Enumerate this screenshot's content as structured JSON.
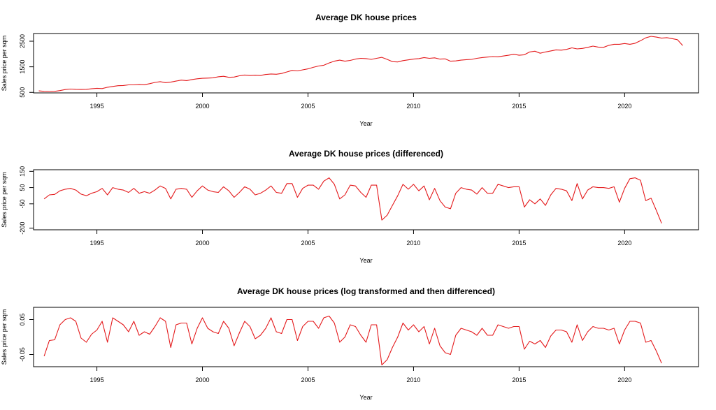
{
  "colors": {
    "series": "#e41a1c"
  },
  "chart_data": [
    {
      "type": "line",
      "title": "Average DK house prices",
      "xlabel": "Year",
      "ylabel": "Sales price per sqm",
      "xlim": [
        1992.0,
        2023.5
      ],
      "ylim": [
        480,
        2800
      ],
      "xticks": [
        1995,
        2000,
        2005,
        2010,
        2015,
        2020
      ],
      "xtick_labels": [
        "1995",
        "2000",
        "2005",
        "2010",
        "2015",
        "2020"
      ],
      "yticks": [
        500,
        1500,
        2500
      ],
      "ytick_labels": [
        "500",
        "1500",
        "2500"
      ],
      "grid": false,
      "legend": "none",
      "series": [
        {
          "x_start": 1992.25,
          "x_step": 0.25,
          "values": [
            560,
            540,
            535,
            540,
            570,
            610,
            630,
            620,
            615,
            620,
            640,
            660,
            650,
            700,
            730,
            760,
            770,
            795,
            795,
            810,
            800,
            840,
            890,
            920,
            880,
            900,
            940,
            980,
            960,
            1000,
            1030,
            1050,
            1060,
            1070,
            1110,
            1130,
            1090,
            1100,
            1150,
            1180,
            1160,
            1170,
            1160,
            1200,
            1220,
            1210,
            1240,
            1300,
            1360,
            1340,
            1380,
            1420,
            1480,
            1530,
            1560,
            1650,
            1720,
            1760,
            1720,
            1750,
            1800,
            1830,
            1820,
            1790,
            1830,
            1870,
            1790,
            1700,
            1690,
            1740,
            1770,
            1800,
            1820,
            1860,
            1830,
            1850,
            1800,
            1810,
            1720,
            1730,
            1760,
            1780,
            1790,
            1830,
            1860,
            1880,
            1900,
            1890,
            1920,
            1950,
            1990,
            1950,
            1970,
            2080,
            2110,
            2030,
            2080,
            2120,
            2160,
            2150,
            2180,
            2240,
            2200,
            2220,
            2260,
            2310,
            2270,
            2260,
            2340,
            2380,
            2380,
            2410,
            2380,
            2420,
            2520,
            2630,
            2690,
            2660,
            2620,
            2640,
            2600,
            2560,
            2330
          ]
        }
      ]
    },
    {
      "type": "line",
      "title": "Average DK house prices (differenced)",
      "xlabel": "Year",
      "ylabel": "Sales price per sqm",
      "xlim": [
        1992.0,
        2023.5
      ],
      "ylim": [
        -210,
        160
      ],
      "xticks": [
        1995,
        2000,
        2005,
        2010,
        2015,
        2020
      ],
      "xtick_labels": [
        "1995",
        "2000",
        "2005",
        "2010",
        "2015",
        "2020"
      ],
      "yticks": [
        -200,
        -50,
        50,
        150
      ],
      "ytick_labels": [
        "-200",
        "-50",
        "50",
        "150"
      ],
      "grid": false,
      "legend": "none",
      "series": [
        {
          "x_start": 1992.5,
          "x_step": 0.25,
          "values": [
            -20,
            5,
            8,
            30,
            40,
            45,
            35,
            10,
            0,
            15,
            25,
            45,
            5,
            50,
            40,
            35,
            20,
            45,
            15,
            25,
            15,
            35,
            60,
            45,
            -20,
            40,
            45,
            40,
            -10,
            30,
            60,
            35,
            25,
            20,
            55,
            30,
            -10,
            20,
            55,
            40,
            5,
            15,
            35,
            60,
            20,
            15,
            75,
            75,
            -10,
            45,
            65,
            65,
            40,
            90,
            110,
            70,
            -20,
            5,
            65,
            60,
            20,
            -10,
            65,
            65,
            -150,
            -120,
            -60,
            0,
            70,
            40,
            70,
            30,
            60,
            -25,
            45,
            -30,
            -70,
            -80,
            15,
            50,
            40,
            35,
            10,
            50,
            15,
            15,
            70,
            60,
            50,
            55,
            55,
            -70,
            -25,
            -50,
            -20,
            -60,
            5,
            45,
            40,
            30,
            -30,
            75,
            -20,
            35,
            55,
            50,
            50,
            45,
            55,
            -40,
            45,
            105,
            110,
            95,
            -30,
            -15,
            -90,
            -170
          ]
        }
      ]
    },
    {
      "type": "line",
      "title": "Average DK house prices (log transformed and then differenced)",
      "xlabel": "Year",
      "ylabel": "Sales price per sqm",
      "xlim": [
        1992.0,
        2023.5
      ],
      "ylim": [
        -0.085,
        0.085
      ],
      "xticks": [
        1995,
        2000,
        2005,
        2010,
        2015,
        2020
      ],
      "xtick_labels": [
        "1995",
        "2000",
        "2005",
        "2010",
        "2015",
        "2020"
      ],
      "yticks": [
        -0.05,
        0.05
      ],
      "ytick_labels": [
        "-0.05",
        "0.05"
      ],
      "grid": false,
      "legend": "none",
      "series": [
        {
          "x_start": 1992.5,
          "x_step": 0.25,
          "values": [
            -0.055,
            -0.01,
            -0.008,
            0.035,
            0.05,
            0.055,
            0.045,
            -0.003,
            -0.015,
            0.008,
            0.02,
            0.045,
            -0.015,
            0.055,
            0.045,
            0.035,
            0.015,
            0.045,
            0.005,
            0.015,
            0.008,
            0.03,
            0.055,
            0.045,
            -0.03,
            0.035,
            0.04,
            0.04,
            -0.02,
            0.025,
            0.055,
            0.025,
            0.015,
            0.01,
            0.045,
            0.025,
            -0.025,
            0.012,
            0.045,
            0.03,
            -0.005,
            0.005,
            0.025,
            0.055,
            0.015,
            0.01,
            0.05,
            0.05,
            -0.01,
            0.03,
            0.045,
            0.045,
            0.025,
            0.055,
            0.06,
            0.04,
            -0.015,
            0.0,
            0.035,
            0.03,
            0.005,
            -0.015,
            0.035,
            0.035,
            -0.08,
            -0.065,
            -0.03,
            0.0,
            0.04,
            0.02,
            0.035,
            0.015,
            0.03,
            -0.02,
            0.025,
            -0.025,
            -0.045,
            -0.05,
            0.005,
            0.025,
            0.02,
            0.015,
            0.005,
            0.025,
            0.005,
            0.005,
            0.035,
            0.03,
            0.025,
            0.03,
            0.03,
            -0.035,
            -0.012,
            -0.02,
            -0.01,
            -0.03,
            0.003,
            0.02,
            0.02,
            0.015,
            -0.015,
            0.035,
            -0.01,
            0.015,
            0.03,
            0.025,
            0.025,
            0.02,
            0.025,
            -0.02,
            0.02,
            0.045,
            0.045,
            0.04,
            -0.015,
            -0.01,
            -0.04,
            -0.075
          ]
        }
      ]
    }
  ]
}
